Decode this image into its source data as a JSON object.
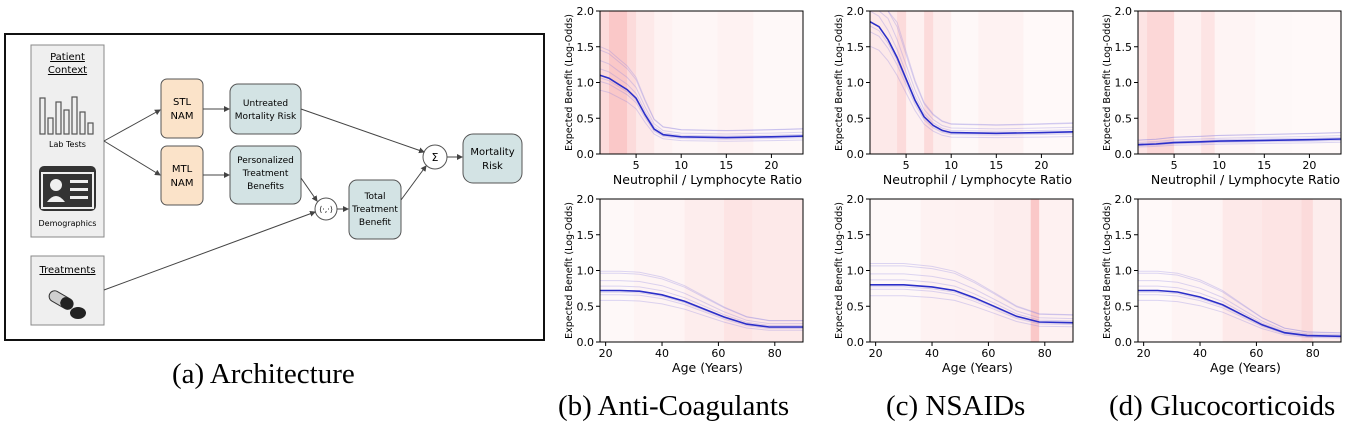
{
  "architecture": {
    "patient_context": {
      "title_line1": "Patient",
      "title_line2": "Context",
      "lab_tests": "Lab Tests",
      "demographics": "Demographics"
    },
    "treatments": "Treatments",
    "stl_nam": [
      "STL",
      "NAM"
    ],
    "mtl_nam": [
      "MTL",
      "NAM"
    ],
    "untreated_risk": [
      "Untreated",
      "Mortality Risk"
    ],
    "personalized": [
      "Personalized",
      "Treatment",
      "Benefits"
    ],
    "dot_product": "⟨·,·⟩",
    "total_benefit": [
      "Total",
      "Treatment",
      "Benefit"
    ],
    "sum": "Σ",
    "mortality_risk": [
      "Mortality",
      "Risk"
    ],
    "colors": {
      "orange": "#fbe3c9",
      "teal": "#d3e3e4",
      "gray": "#efefef",
      "line": "#444444"
    }
  },
  "captions": {
    "a": "(a) Architecture",
    "b": "(b) Anti-Coagulants",
    "c": "(c) NSAIDs",
    "d": "(d) Glucocorticoids"
  },
  "chart_data": [
    {
      "id": "b-top",
      "type": "line",
      "xlabel": "Neutrophil / Lymphocyte Ratio",
      "ylabel": "Expected Benefit (Log-Odds)",
      "xlim": [
        1,
        23.5
      ],
      "ylim": [
        0,
        2.0
      ],
      "xticks": [
        5,
        10,
        15,
        20
      ],
      "yticks": [
        0.0,
        0.5,
        1.0,
        1.5,
        2.0
      ],
      "mean": [
        [
          1,
          1.1
        ],
        [
          2,
          1.06
        ],
        [
          3,
          0.98
        ],
        [
          4,
          0.9
        ],
        [
          5,
          0.78
        ],
        [
          6,
          0.55
        ],
        [
          7,
          0.35
        ],
        [
          8,
          0.27
        ],
        [
          10,
          0.24
        ],
        [
          15,
          0.23
        ],
        [
          20,
          0.24
        ],
        [
          23.5,
          0.25
        ]
      ],
      "background_bands": [
        [
          1,
          2,
          0.2
        ],
        [
          2,
          4,
          0.3
        ],
        [
          4,
          5,
          0.2
        ],
        [
          5,
          7,
          0.12
        ],
        [
          7,
          9,
          0.07
        ],
        [
          9,
          14,
          0.05
        ],
        [
          14,
          18,
          0.07
        ],
        [
          18,
          23.5,
          0.04
        ]
      ]
    },
    {
      "id": "c-top",
      "type": "line",
      "xlabel": "Neutrophil / Lymphocyte Ratio",
      "ylabel": "Expected Benefit (Log-Odds)",
      "xlim": [
        1,
        23.5
      ],
      "ylim": [
        0,
        2.0
      ],
      "xticks": [
        5,
        10,
        15,
        20
      ],
      "yticks": [
        0.0,
        0.5,
        1.0,
        1.5,
        2.0
      ],
      "mean": [
        [
          1,
          1.85
        ],
        [
          2,
          1.78
        ],
        [
          3,
          1.6
        ],
        [
          4,
          1.35
        ],
        [
          5,
          1.05
        ],
        [
          6,
          0.75
        ],
        [
          7,
          0.52
        ],
        [
          8,
          0.4
        ],
        [
          9,
          0.33
        ],
        [
          10,
          0.3
        ],
        [
          15,
          0.29
        ],
        [
          20,
          0.3
        ],
        [
          23.5,
          0.31
        ]
      ],
      "background_bands": [
        [
          1,
          4,
          0.12
        ],
        [
          4,
          5,
          0.2
        ],
        [
          5,
          7,
          0.08
        ],
        [
          7,
          8,
          0.2
        ],
        [
          8,
          10,
          0.1
        ],
        [
          10,
          13,
          0.04
        ],
        [
          13,
          18,
          0.07
        ],
        [
          18,
          23.5,
          0.03
        ]
      ]
    },
    {
      "id": "d-top",
      "type": "line",
      "xlabel": "Neutrophil / Lymphocyte Ratio",
      "ylabel": "Expected Benefit (Log-Odds)",
      "xlim": [
        1,
        23.5
      ],
      "ylim": [
        0,
        2.0
      ],
      "xticks": [
        5,
        10,
        15,
        20
      ],
      "yticks": [
        0.0,
        0.5,
        1.0,
        1.5,
        2.0
      ],
      "mean": [
        [
          1,
          0.13
        ],
        [
          3,
          0.14
        ],
        [
          5,
          0.16
        ],
        [
          8,
          0.17
        ],
        [
          10,
          0.18
        ],
        [
          15,
          0.19
        ],
        [
          20,
          0.2
        ],
        [
          23.5,
          0.21
        ]
      ],
      "background_bands": [
        [
          1,
          2,
          0.15
        ],
        [
          2,
          5,
          0.22
        ],
        [
          5,
          8,
          0.08
        ],
        [
          8,
          9.5,
          0.15
        ],
        [
          9.5,
          14,
          0.06
        ],
        [
          14,
          18,
          0.04
        ],
        [
          18,
          23.5,
          0.03
        ]
      ]
    },
    {
      "id": "b-bottom",
      "type": "line",
      "xlabel": "Age (Years)",
      "ylabel": "Expected Benefit (Log-Odds)",
      "xlim": [
        18,
        90
      ],
      "ylim": [
        0,
        2.0
      ],
      "xticks": [
        20,
        40,
        60,
        80
      ],
      "yticks": [
        0.0,
        0.5,
        1.0,
        1.5,
        2.0
      ],
      "mean": [
        [
          18,
          0.72
        ],
        [
          25,
          0.72
        ],
        [
          32,
          0.71
        ],
        [
          40,
          0.66
        ],
        [
          48,
          0.57
        ],
        [
          55,
          0.46
        ],
        [
          62,
          0.35
        ],
        [
          70,
          0.25
        ],
        [
          78,
          0.21
        ],
        [
          90,
          0.21
        ]
      ],
      "background_bands": [
        [
          18,
          30,
          0.04
        ],
        [
          30,
          48,
          0.06
        ],
        [
          48,
          62,
          0.1
        ],
        [
          62,
          72,
          0.15
        ],
        [
          72,
          90,
          0.12
        ]
      ]
    },
    {
      "id": "c-bottom",
      "type": "line",
      "xlabel": "Age (Years)",
      "ylabel": "Expected Benefit (Log-Odds)",
      "xlim": [
        18,
        90
      ],
      "ylim": [
        0,
        2.0
      ],
      "xticks": [
        20,
        40,
        60,
        80
      ],
      "yticks": [
        0.0,
        0.5,
        1.0,
        1.5,
        2.0
      ],
      "mean": [
        [
          18,
          0.8
        ],
        [
          30,
          0.8
        ],
        [
          40,
          0.77
        ],
        [
          48,
          0.72
        ],
        [
          55,
          0.62
        ],
        [
          62,
          0.5
        ],
        [
          70,
          0.36
        ],
        [
          78,
          0.28
        ],
        [
          90,
          0.27
        ]
      ],
      "background_bands": [
        [
          18,
          36,
          0.04
        ],
        [
          36,
          48,
          0.07
        ],
        [
          48,
          62,
          0.08
        ],
        [
          62,
          75,
          0.1
        ],
        [
          75,
          78,
          0.3
        ],
        [
          78,
          90,
          0.08
        ]
      ]
    },
    {
      "id": "d-bottom",
      "type": "line",
      "xlabel": "Age (Years)",
      "ylabel": "Expected Benefit (Log-Odds)",
      "xlim": [
        18,
        90
      ],
      "ylim": [
        0,
        2.0
      ],
      "xticks": [
        20,
        40,
        60,
        80
      ],
      "yticks": [
        0.0,
        0.5,
        1.0,
        1.5,
        2.0
      ],
      "mean": [
        [
          18,
          0.72
        ],
        [
          25,
          0.72
        ],
        [
          32,
          0.7
        ],
        [
          40,
          0.63
        ],
        [
          48,
          0.52
        ],
        [
          55,
          0.38
        ],
        [
          62,
          0.24
        ],
        [
          70,
          0.13
        ],
        [
          78,
          0.09
        ],
        [
          90,
          0.08
        ]
      ],
      "background_bands": [
        [
          18,
          30,
          0.03
        ],
        [
          30,
          48,
          0.06
        ],
        [
          48,
          62,
          0.12
        ],
        [
          62,
          76,
          0.15
        ],
        [
          76,
          80,
          0.2
        ],
        [
          80,
          90,
          0.1
        ]
      ]
    }
  ]
}
